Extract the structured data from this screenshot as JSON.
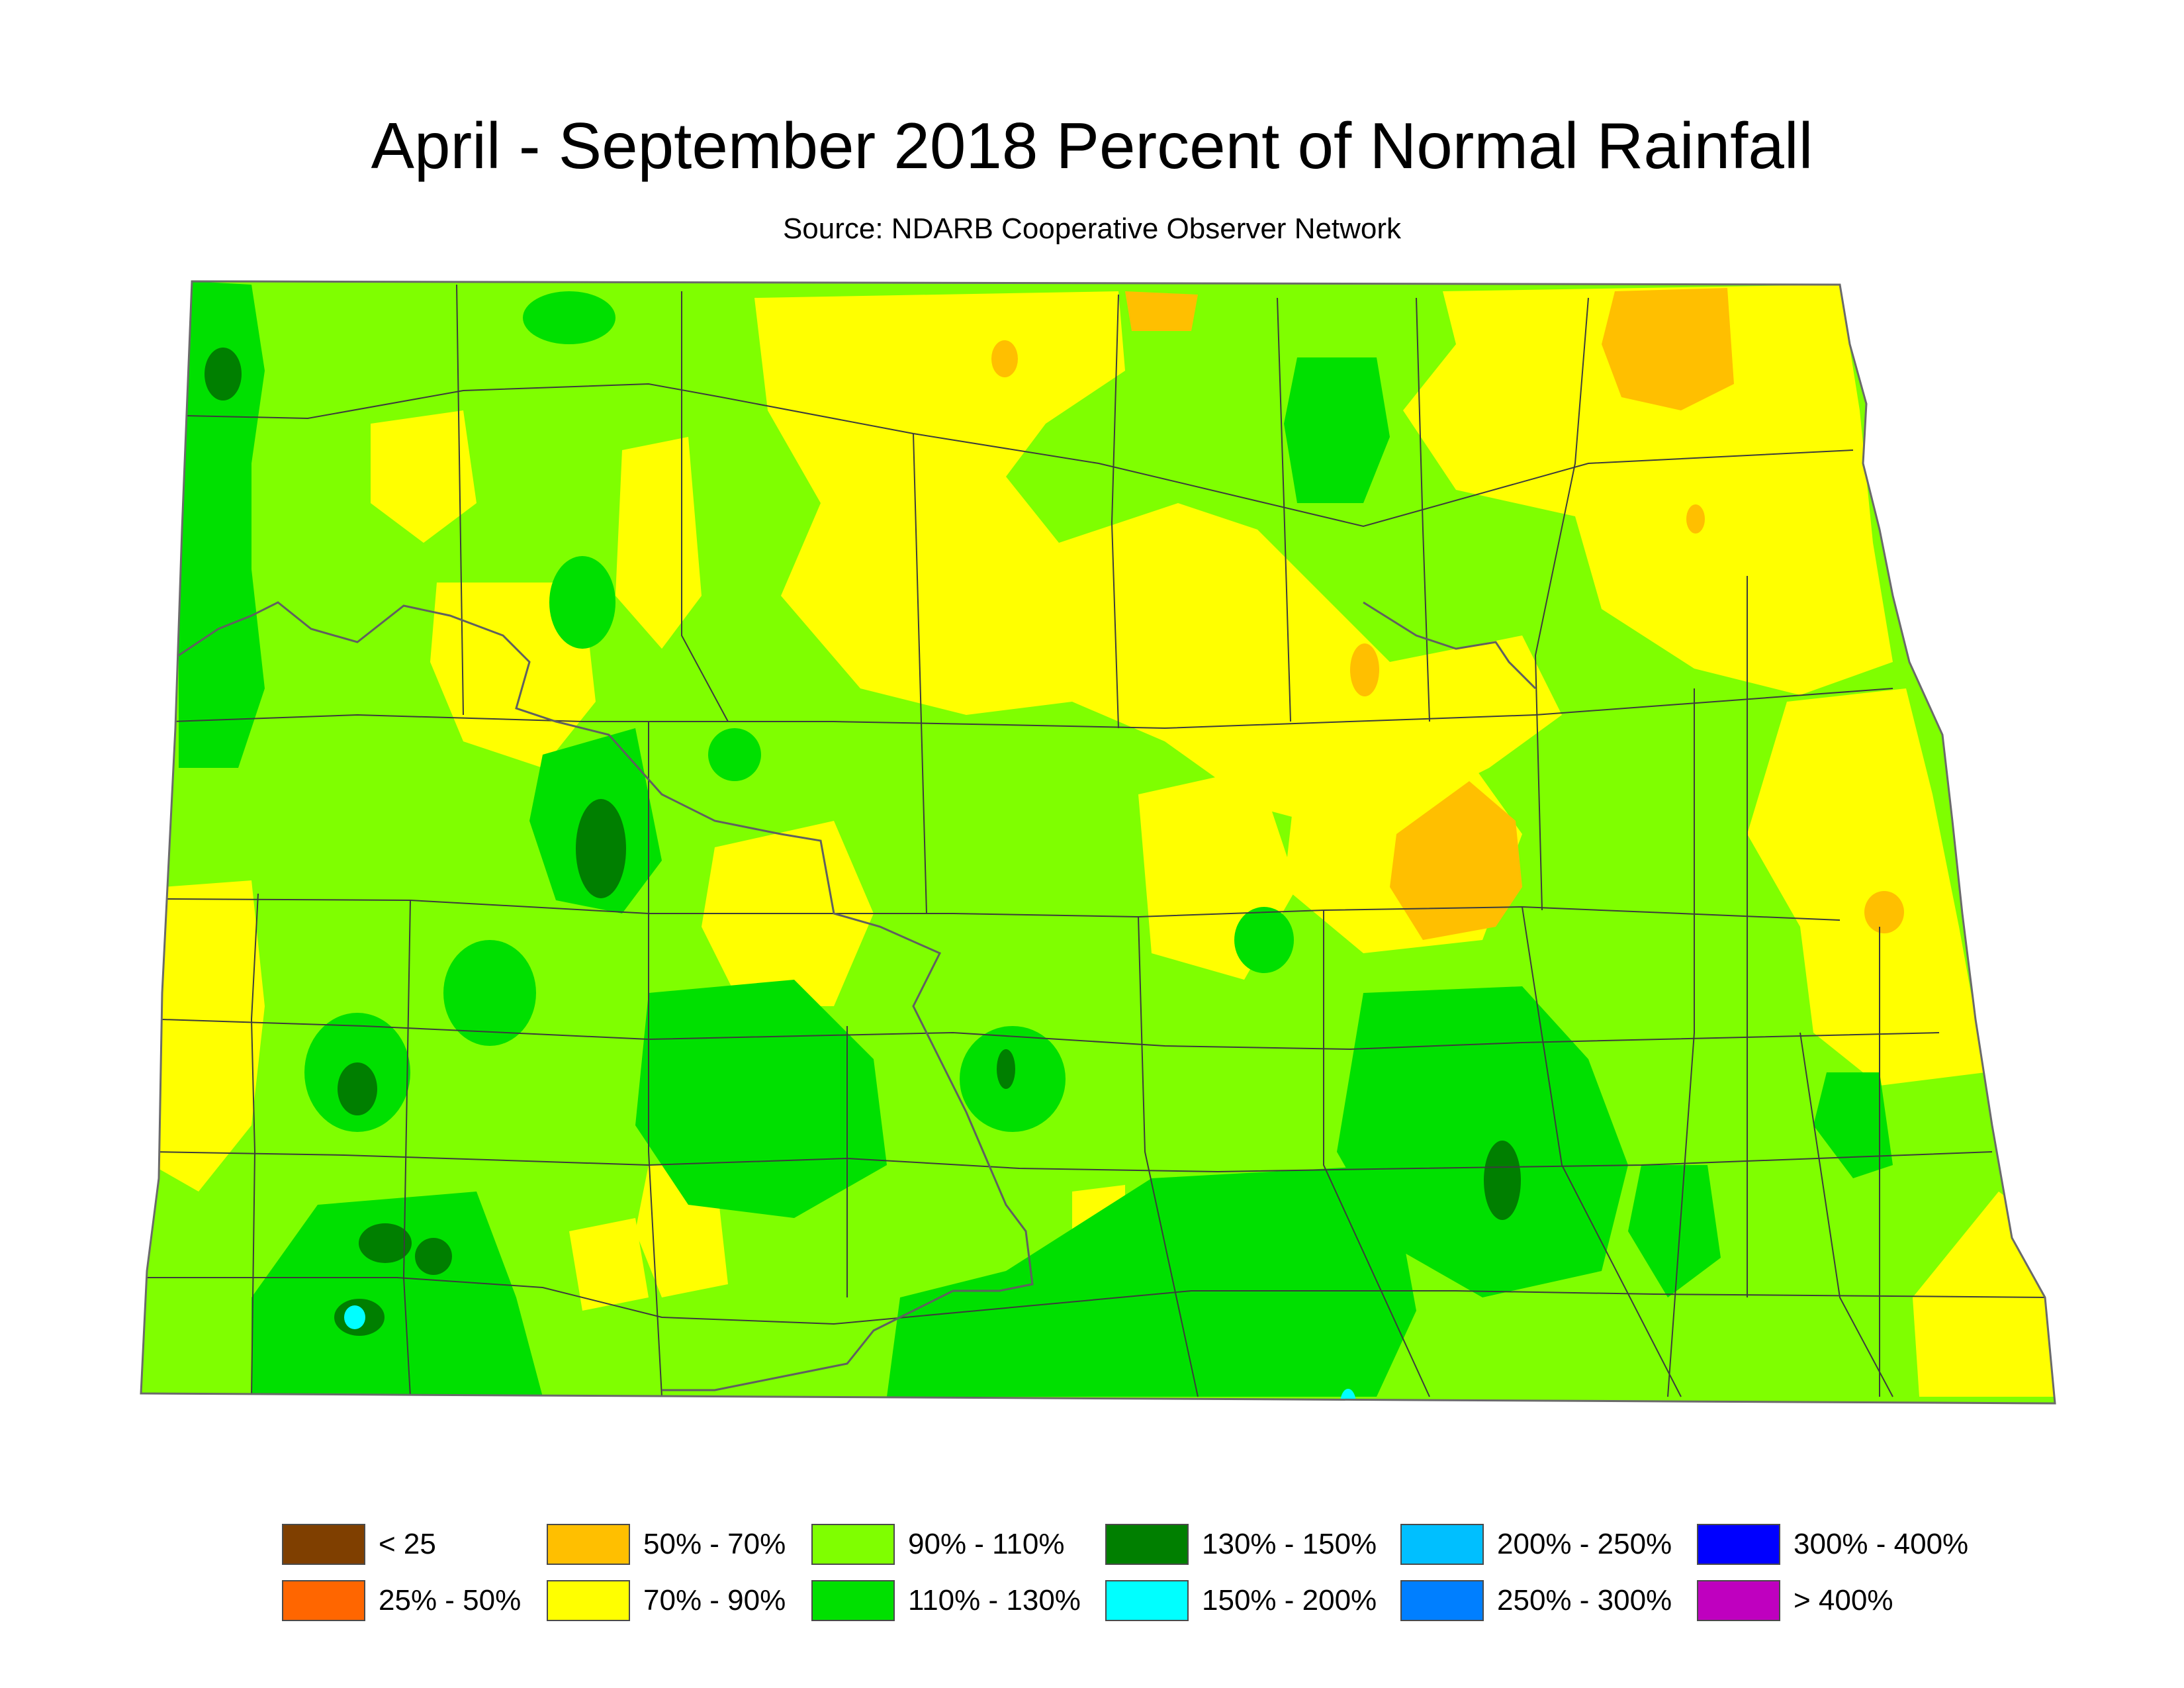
{
  "title": "April - September 2018 Percent of Normal Rainfall",
  "subtitle": "Source: NDARB Cooperative Observer Network",
  "map": {
    "region": "North Dakota",
    "colors": {
      "background": "#ffffff",
      "base": "#7fff00",
      "county_line": "#3c3c3c",
      "river_line": "#606060"
    }
  },
  "legend": [
    {
      "label": "< 25",
      "color": "#7f3f00"
    },
    {
      "label": "25% - 50%",
      "color": "#ff6600"
    },
    {
      "label": "50% - 70%",
      "color": "#ffbf00"
    },
    {
      "label": "70% - 90%",
      "color": "#ffff00"
    },
    {
      "label": "90% - 110%",
      "color": "#7fff00"
    },
    {
      "label": "110% - 130%",
      "color": "#00e000"
    },
    {
      "label": "130% - 150%",
      "color": "#007f00"
    },
    {
      "label": "150% - 200%",
      "color": "#00ffff"
    },
    {
      "label": "200% - 250%",
      "color": "#00bfff"
    },
    {
      "label": "250% - 300%",
      "color": "#007fff"
    },
    {
      "label": "300% - 400%",
      "color": "#0000ff"
    },
    {
      "label": "> 400%",
      "color": "#bf00bf"
    }
  ]
}
